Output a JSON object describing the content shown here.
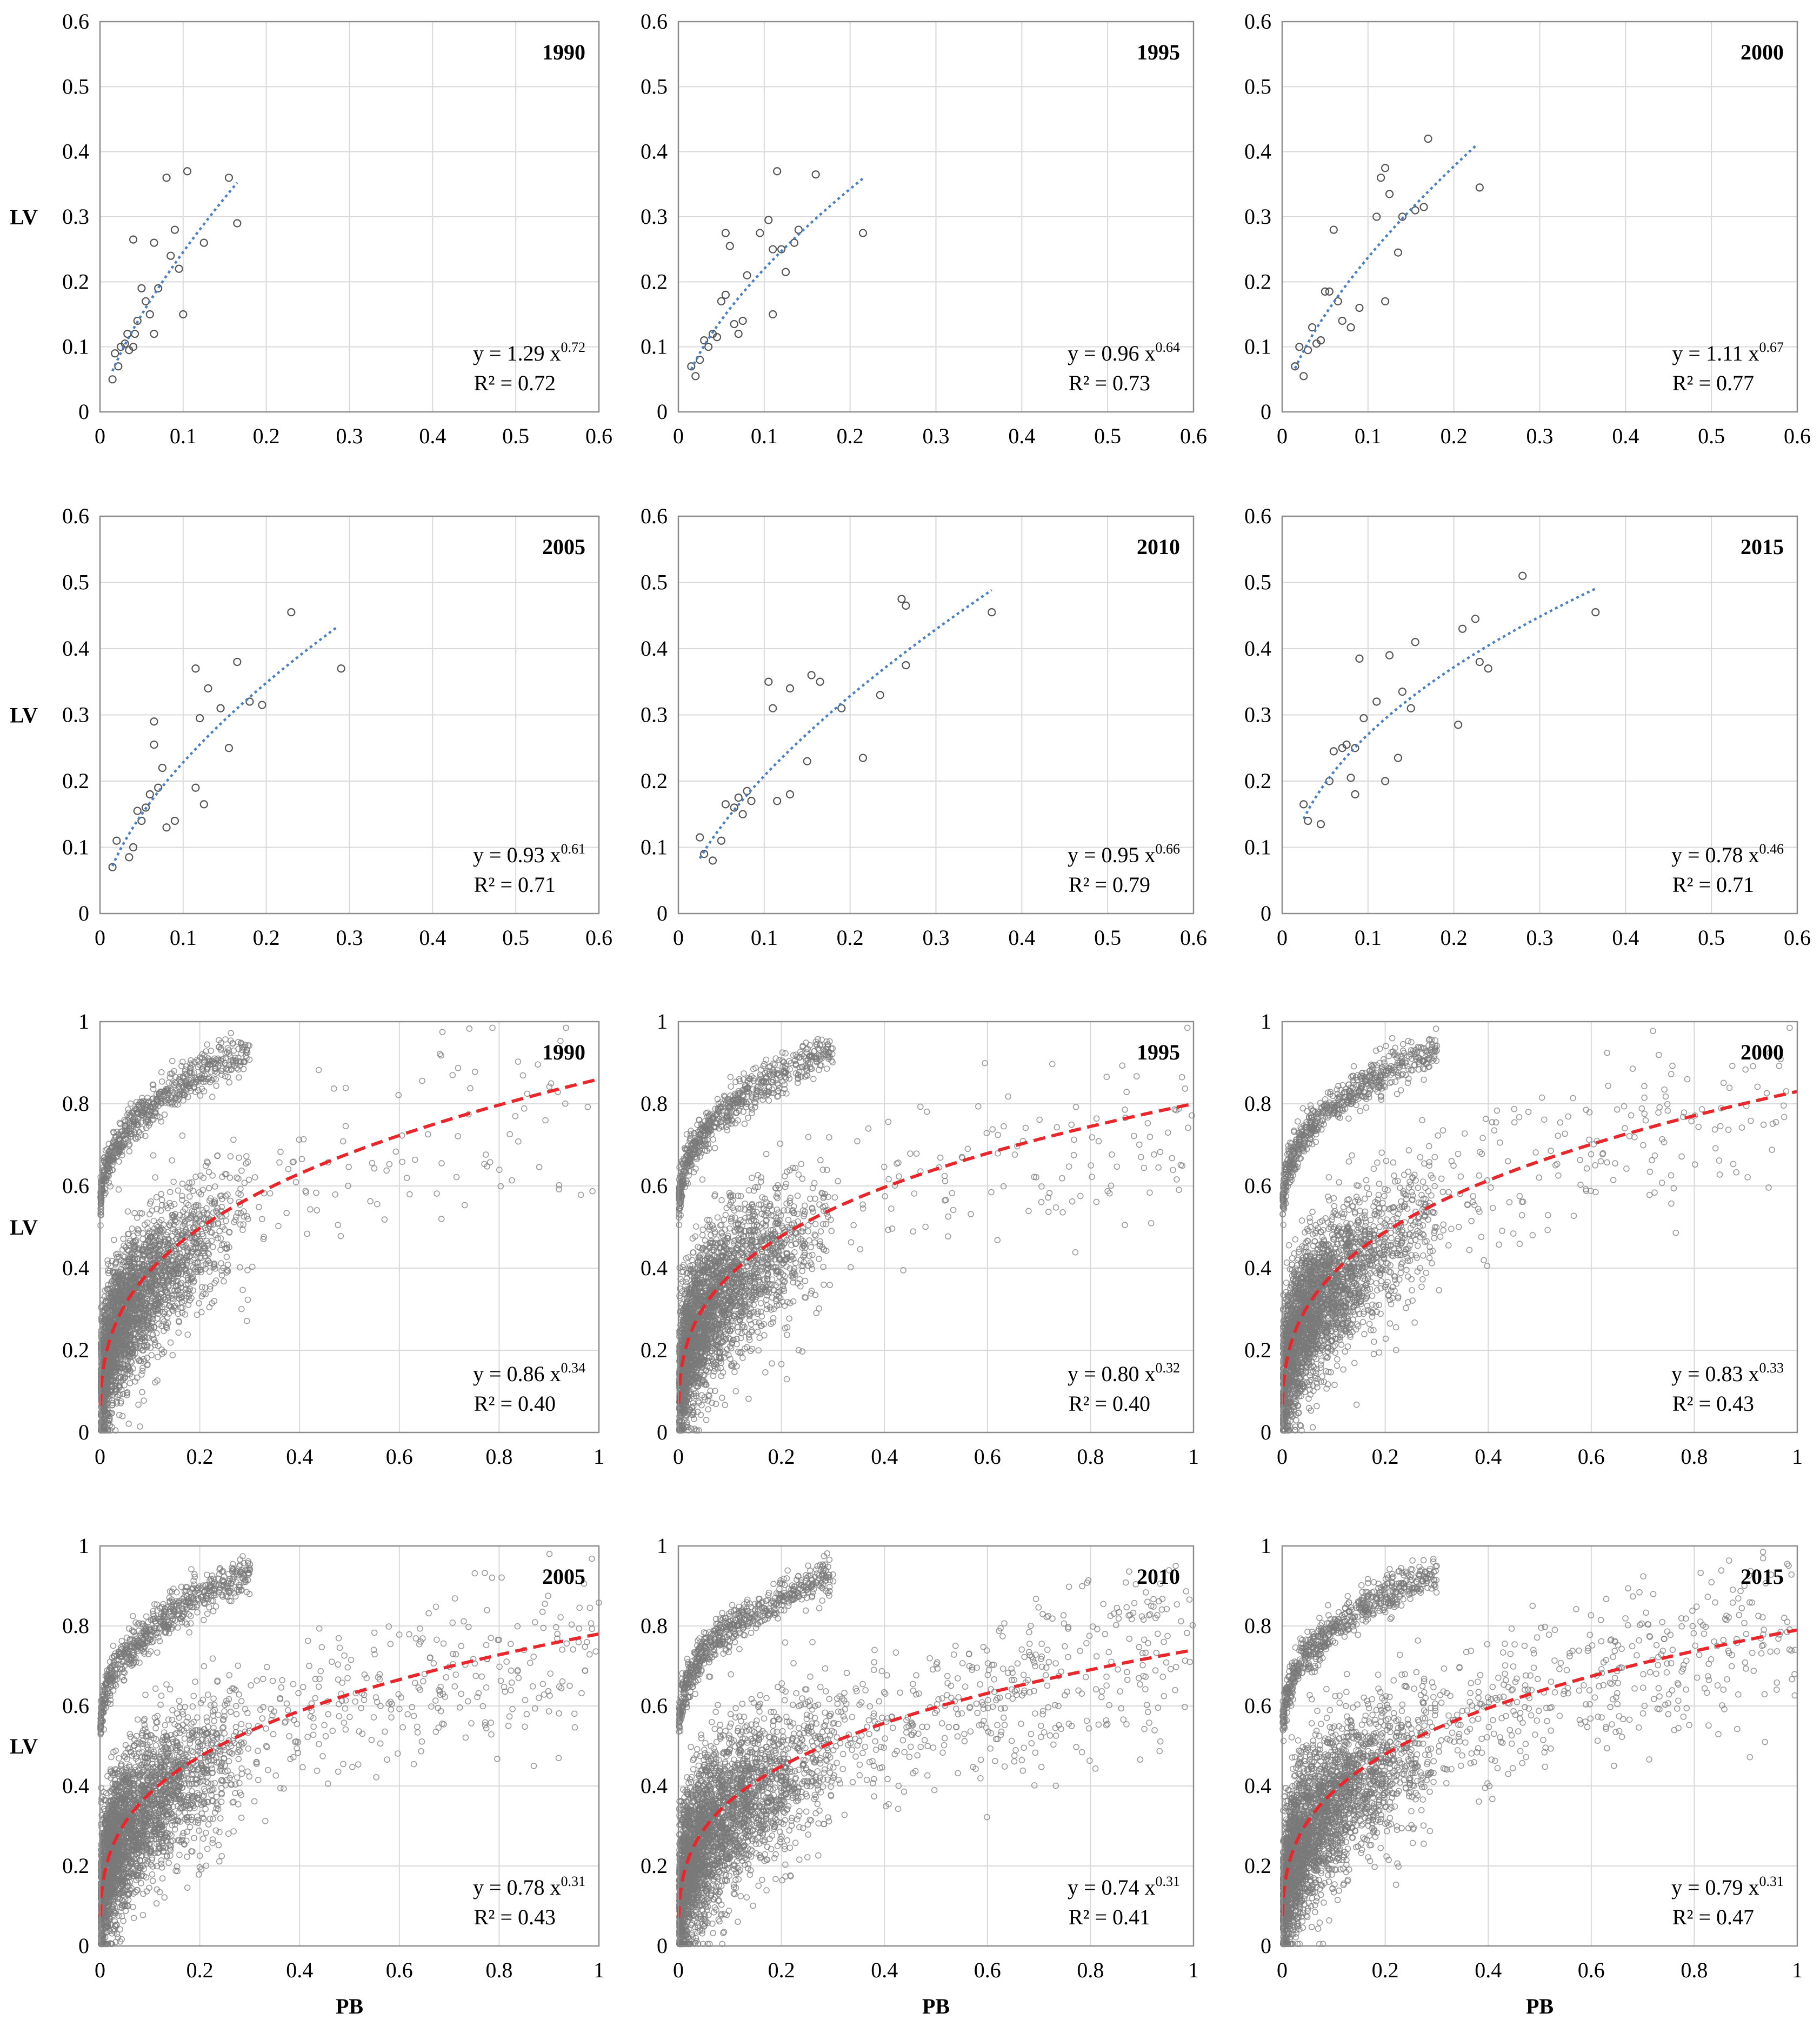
{
  "chart_data": [
    {
      "type": "scatter",
      "title": "1990",
      "ylabel": "LV",
      "xlabel": "",
      "xlim": [
        0,
        0.6
      ],
      "ylim": [
        0,
        0.6
      ],
      "xticks": [
        "0",
        "0.1",
        "0.2",
        "0.3",
        "0.4",
        "0.5",
        "0.6"
      ],
      "yticks": [
        "0",
        "0.1",
        "0.2",
        "0.3",
        "0.4",
        "0.5",
        "0.6"
      ],
      "fit": {
        "a": 1.29,
        "b": 0.72,
        "xmin": 0.015,
        "xmax": 0.165,
        "style": "dotted",
        "color": "#4a7fc1"
      },
      "equation": {
        "prefix": "y = 1.29 x",
        "exponent": "0.72",
        "r2": "R² = 0.72"
      },
      "points": [
        [
          0.015,
          0.05
        ],
        [
          0.018,
          0.09
        ],
        [
          0.022,
          0.07
        ],
        [
          0.025,
          0.1
        ],
        [
          0.03,
          0.105
        ],
        [
          0.033,
          0.12
        ],
        [
          0.035,
          0.095
        ],
        [
          0.04,
          0.265
        ],
        [
          0.04,
          0.1
        ],
        [
          0.042,
          0.12
        ],
        [
          0.045,
          0.14
        ],
        [
          0.05,
          0.19
        ],
        [
          0.055,
          0.17
        ],
        [
          0.06,
          0.15
        ],
        [
          0.065,
          0.26
        ],
        [
          0.065,
          0.12
        ],
        [
          0.07,
          0.19
        ],
        [
          0.08,
          0.36
        ],
        [
          0.085,
          0.24
        ],
        [
          0.09,
          0.28
        ],
        [
          0.095,
          0.22
        ],
        [
          0.1,
          0.15
        ],
        [
          0.105,
          0.37
        ],
        [
          0.125,
          0.26
        ],
        [
          0.155,
          0.36
        ],
        [
          0.165,
          0.29
        ]
      ]
    },
    {
      "type": "scatter",
      "title": "1995",
      "ylabel": "",
      "xlabel": "",
      "xlim": [
        0,
        0.6
      ],
      "ylim": [
        0,
        0.6
      ],
      "xticks": [
        "0",
        "0.1",
        "0.2",
        "0.3",
        "0.4",
        "0.5",
        "0.6"
      ],
      "yticks": [
        "0",
        "0.1",
        "0.2",
        "0.3",
        "0.4",
        "0.5",
        "0.6"
      ],
      "fit": {
        "a": 0.96,
        "b": 0.64,
        "xmin": 0.015,
        "xmax": 0.215,
        "style": "dotted",
        "color": "#4a7fc1"
      },
      "equation": {
        "prefix": "y = 0.96 x",
        "exponent": "0.64",
        "r2": "R² = 0.73"
      },
      "points": [
        [
          0.015,
          0.07
        ],
        [
          0.02,
          0.055
        ],
        [
          0.025,
          0.08
        ],
        [
          0.03,
          0.11
        ],
        [
          0.035,
          0.1
        ],
        [
          0.04,
          0.12
        ],
        [
          0.045,
          0.115
        ],
        [
          0.05,
          0.17
        ],
        [
          0.055,
          0.18
        ],
        [
          0.055,
          0.275
        ],
        [
          0.06,
          0.255
        ],
        [
          0.065,
          0.135
        ],
        [
          0.07,
          0.12
        ],
        [
          0.075,
          0.14
        ],
        [
          0.08,
          0.21
        ],
        [
          0.095,
          0.275
        ],
        [
          0.105,
          0.295
        ],
        [
          0.11,
          0.15
        ],
        [
          0.11,
          0.25
        ],
        [
          0.115,
          0.37
        ],
        [
          0.12,
          0.25
        ],
        [
          0.125,
          0.215
        ],
        [
          0.135,
          0.26
        ],
        [
          0.14,
          0.28
        ],
        [
          0.16,
          0.365
        ],
        [
          0.215,
          0.275
        ]
      ]
    },
    {
      "type": "scatter",
      "title": "2000",
      "ylabel": "",
      "xlabel": "",
      "xlim": [
        0,
        0.6
      ],
      "ylim": [
        0,
        0.6
      ],
      "xticks": [
        "0",
        "0.1",
        "0.2",
        "0.3",
        "0.4",
        "0.5",
        "0.6"
      ],
      "yticks": [
        "0",
        "0.1",
        "0.2",
        "0.3",
        "0.4",
        "0.5",
        "0.6"
      ],
      "fit": {
        "a": 1.11,
        "b": 0.67,
        "xmin": 0.015,
        "xmax": 0.225,
        "style": "dotted",
        "color": "#4a7fc1"
      },
      "equation": {
        "prefix": "y = 1.11 x",
        "exponent": "0.67",
        "r2": "R² = 0.77"
      },
      "points": [
        [
          0.015,
          0.07
        ],
        [
          0.02,
          0.1
        ],
        [
          0.025,
          0.055
        ],
        [
          0.03,
          0.095
        ],
        [
          0.035,
          0.13
        ],
        [
          0.04,
          0.105
        ],
        [
          0.045,
          0.11
        ],
        [
          0.05,
          0.185
        ],
        [
          0.055,
          0.185
        ],
        [
          0.06,
          0.28
        ],
        [
          0.065,
          0.17
        ],
        [
          0.07,
          0.14
        ],
        [
          0.08,
          0.13
        ],
        [
          0.09,
          0.16
        ],
        [
          0.11,
          0.3
        ],
        [
          0.115,
          0.36
        ],
        [
          0.12,
          0.375
        ],
        [
          0.12,
          0.17
        ],
        [
          0.125,
          0.335
        ],
        [
          0.135,
          0.245
        ],
        [
          0.14,
          0.3
        ],
        [
          0.155,
          0.31
        ],
        [
          0.165,
          0.315
        ],
        [
          0.17,
          0.42
        ],
        [
          0.23,
          0.345
        ]
      ]
    },
    {
      "type": "scatter",
      "title": "2005",
      "ylabel": "LV",
      "xlabel": "",
      "xlim": [
        0,
        0.6
      ],
      "ylim": [
        0,
        0.6
      ],
      "xticks": [
        "0",
        "0.1",
        "0.2",
        "0.3",
        "0.4",
        "0.5",
        "0.6"
      ],
      "yticks": [
        "0",
        "0.1",
        "0.2",
        "0.3",
        "0.4",
        "0.5",
        "0.6"
      ],
      "fit": {
        "a": 0.93,
        "b": 0.61,
        "xmin": 0.015,
        "xmax": 0.285,
        "style": "dotted",
        "color": "#4a7fc1"
      },
      "equation": {
        "prefix": "y = 0.93 x",
        "exponent": "0.61",
        "r2": "R² = 0.71"
      },
      "points": [
        [
          0.015,
          0.07
        ],
        [
          0.02,
          0.11
        ],
        [
          0.035,
          0.085
        ],
        [
          0.04,
          0.1
        ],
        [
          0.045,
          0.155
        ],
        [
          0.05,
          0.14
        ],
        [
          0.055,
          0.16
        ],
        [
          0.06,
          0.18
        ],
        [
          0.065,
          0.255
        ],
        [
          0.065,
          0.29
        ],
        [
          0.07,
          0.19
        ],
        [
          0.075,
          0.22
        ],
        [
          0.08,
          0.13
        ],
        [
          0.09,
          0.14
        ],
        [
          0.115,
          0.37
        ],
        [
          0.115,
          0.19
        ],
        [
          0.12,
          0.295
        ],
        [
          0.125,
          0.165
        ],
        [
          0.13,
          0.34
        ],
        [
          0.145,
          0.31
        ],
        [
          0.155,
          0.25
        ],
        [
          0.165,
          0.38
        ],
        [
          0.18,
          0.32
        ],
        [
          0.195,
          0.315
        ],
        [
          0.23,
          0.455
        ],
        [
          0.29,
          0.37
        ]
      ]
    },
    {
      "type": "scatter",
      "title": "2010",
      "ylabel": "",
      "xlabel": "",
      "xlim": [
        0,
        0.6
      ],
      "ylim": [
        0,
        0.6
      ],
      "xticks": [
        "0",
        "0.1",
        "0.2",
        "0.3",
        "0.4",
        "0.5",
        "0.6"
      ],
      "yticks": [
        "0",
        "0.1",
        "0.2",
        "0.3",
        "0.4",
        "0.5",
        "0.6"
      ],
      "fit": {
        "a": 0.95,
        "b": 0.66,
        "xmin": 0.025,
        "xmax": 0.365,
        "style": "dotted",
        "color": "#4a7fc1"
      },
      "equation": {
        "prefix": "y = 0.95 x",
        "exponent": "0.66",
        "r2": "R² = 0.79"
      },
      "points": [
        [
          0.025,
          0.115
        ],
        [
          0.03,
          0.09
        ],
        [
          0.04,
          0.08
        ],
        [
          0.05,
          0.11
        ],
        [
          0.055,
          0.165
        ],
        [
          0.065,
          0.16
        ],
        [
          0.07,
          0.175
        ],
        [
          0.075,
          0.15
        ],
        [
          0.08,
          0.185
        ],
        [
          0.085,
          0.17
        ],
        [
          0.105,
          0.35
        ],
        [
          0.11,
          0.31
        ],
        [
          0.115,
          0.17
        ],
        [
          0.13,
          0.18
        ],
        [
          0.13,
          0.34
        ],
        [
          0.15,
          0.23
        ],
        [
          0.155,
          0.36
        ],
        [
          0.165,
          0.35
        ],
        [
          0.19,
          0.31
        ],
        [
          0.215,
          0.235
        ],
        [
          0.235,
          0.33
        ],
        [
          0.26,
          0.475
        ],
        [
          0.265,
          0.465
        ],
        [
          0.265,
          0.375
        ],
        [
          0.365,
          0.455
        ]
      ]
    },
    {
      "type": "scatter",
      "title": "2015",
      "ylabel": "",
      "xlabel": "",
      "xlim": [
        0,
        0.6
      ],
      "ylim": [
        0,
        0.6
      ],
      "xticks": [
        "0",
        "0.1",
        "0.2",
        "0.3",
        "0.4",
        "0.5",
        "0.6"
      ],
      "yticks": [
        "0",
        "0.1",
        "0.2",
        "0.3",
        "0.4",
        "0.5",
        "0.6"
      ],
      "fit": {
        "a": 0.78,
        "b": 0.46,
        "xmin": 0.025,
        "xmax": 0.365,
        "style": "dotted",
        "color": "#4a7fc1"
      },
      "equation": {
        "prefix": "y = 0.78 x",
        "exponent": "0.46",
        "r2": "R² = 0.71"
      },
      "points": [
        [
          0.025,
          0.165
        ],
        [
          0.03,
          0.14
        ],
        [
          0.045,
          0.135
        ],
        [
          0.055,
          0.2
        ],
        [
          0.06,
          0.245
        ],
        [
          0.07,
          0.25
        ],
        [
          0.075,
          0.255
        ],
        [
          0.08,
          0.205
        ],
        [
          0.085,
          0.25
        ],
        [
          0.085,
          0.18
        ],
        [
          0.09,
          0.385
        ],
        [
          0.095,
          0.295
        ],
        [
          0.11,
          0.32
        ],
        [
          0.12,
          0.2
        ],
        [
          0.125,
          0.39
        ],
        [
          0.135,
          0.235
        ],
        [
          0.14,
          0.335
        ],
        [
          0.15,
          0.31
        ],
        [
          0.155,
          0.41
        ],
        [
          0.205,
          0.285
        ],
        [
          0.21,
          0.43
        ],
        [
          0.225,
          0.445
        ],
        [
          0.23,
          0.38
        ],
        [
          0.24,
          0.37
        ],
        [
          0.28,
          0.51
        ],
        [
          0.365,
          0.455
        ]
      ]
    },
    {
      "type": "scatter",
      "title": "1990",
      "ylabel": "LV",
      "xlabel": "",
      "xlim": [
        0,
        1
      ],
      "ylim": [
        0,
        1
      ],
      "xticks": [
        "0",
        "0.2",
        "0.4",
        "0.6",
        "0.8",
        "1"
      ],
      "yticks": [
        "0",
        "0.2",
        "0.4",
        "0.6",
        "0.8",
        "1"
      ],
      "fit": {
        "a": 0.86,
        "b": 0.34,
        "xmin": 0.0005,
        "xmax": 1,
        "style": "dashed",
        "color": "#e8262b"
      },
      "equation": {
        "prefix": "y = 0.86 x",
        "exponent": "0.34",
        "r2": "R² = 0.40"
      },
      "cloud": {
        "seed": 11,
        "n_main": 2600,
        "n_arc": 650,
        "n_sparse": 140,
        "spread": 0.085
      }
    },
    {
      "type": "scatter",
      "title": "1995",
      "ylabel": "",
      "xlabel": "",
      "xlim": [
        0,
        1
      ],
      "ylim": [
        0,
        1
      ],
      "xticks": [
        "0",
        "0.2",
        "0.4",
        "0.6",
        "0.8",
        "1"
      ],
      "yticks": [
        "0",
        "0.2",
        "0.4",
        "0.6",
        "0.8",
        "1"
      ],
      "fit": {
        "a": 0.8,
        "b": 0.32,
        "xmin": 0.0005,
        "xmax": 1,
        "style": "dashed",
        "color": "#e8262b"
      },
      "equation": {
        "prefix": "y = 0.80 x",
        "exponent": "0.32",
        "r2": "R² = 0.40"
      },
      "cloud": {
        "seed": 23,
        "n_main": 2600,
        "n_arc": 650,
        "n_sparse": 200,
        "spread": 0.09
      }
    },
    {
      "type": "scatter",
      "title": "2000",
      "ylabel": "",
      "xlabel": "",
      "xlim": [
        0,
        1
      ],
      "ylim": [
        0,
        1
      ],
      "xticks": [
        "0",
        "0.2",
        "0.4",
        "0.6",
        "0.8",
        "1"
      ],
      "yticks": [
        "0",
        "0.2",
        "0.4",
        "0.6",
        "0.8",
        "1"
      ],
      "fit": {
        "a": 0.83,
        "b": 0.33,
        "xmin": 0.0005,
        "xmax": 1,
        "style": "dashed",
        "color": "#e8262b"
      },
      "equation": {
        "prefix": "y = 0.83 x",
        "exponent": "0.33",
        "r2": "R² = 0.43"
      },
      "cloud": {
        "seed": 37,
        "n_main": 2600,
        "n_arc": 650,
        "n_sparse": 260,
        "spread": 0.09
      }
    },
    {
      "type": "scatter",
      "title": "2005",
      "ylabel": "LV",
      "xlabel": "PB",
      "xlim": [
        0,
        1
      ],
      "ylim": [
        0,
        1
      ],
      "xticks": [
        "0",
        "0.2",
        "0.4",
        "0.6",
        "0.8",
        "1"
      ],
      "yticks": [
        "0",
        "0.2",
        "0.4",
        "0.6",
        "0.8",
        "1"
      ],
      "fit": {
        "a": 0.78,
        "b": 0.31,
        "xmin": 0.0005,
        "xmax": 1,
        "style": "dashed",
        "color": "#e8262b"
      },
      "equation": {
        "prefix": "y = 0.78 x",
        "exponent": "0.31",
        "r2": "R² = 0.43"
      },
      "cloud": {
        "seed": 41,
        "n_main": 2700,
        "n_arc": 650,
        "n_sparse": 420,
        "spread": 0.095
      }
    },
    {
      "type": "scatter",
      "title": "2010",
      "ylabel": "",
      "xlabel": "PB",
      "xlim": [
        0,
        1
      ],
      "ylim": [
        0,
        1
      ],
      "xticks": [
        "0",
        "0.2",
        "0.4",
        "0.6",
        "0.8",
        "1"
      ],
      "yticks": [
        "0",
        "0.2",
        "0.4",
        "0.6",
        "0.8",
        "1"
      ],
      "fit": {
        "a": 0.74,
        "b": 0.31,
        "xmin": 0.0005,
        "xmax": 1,
        "style": "dashed",
        "color": "#e8262b"
      },
      "equation": {
        "prefix": "y = 0.74 x",
        "exponent": "0.31",
        "r2": "R² = 0.41"
      },
      "cloud": {
        "seed": 53,
        "n_main": 2800,
        "n_arc": 650,
        "n_sparse": 620,
        "spread": 0.1
      }
    },
    {
      "type": "scatter",
      "title": "2015",
      "ylabel": "",
      "xlabel": "PB",
      "xlim": [
        0,
        1
      ],
      "ylim": [
        0,
        1
      ],
      "xticks": [
        "0",
        "0.2",
        "0.4",
        "0.6",
        "0.8",
        "1"
      ],
      "yticks": [
        "0",
        "0.2",
        "0.4",
        "0.6",
        "0.8",
        "1"
      ],
      "fit": {
        "a": 0.79,
        "b": 0.31,
        "xmin": 0.0005,
        "xmax": 1,
        "style": "dashed",
        "color": "#e8262b"
      },
      "equation": {
        "prefix": "y = 0.79 x",
        "exponent": "0.31",
        "r2": "R² = 0.47"
      },
      "cloud": {
        "seed": 67,
        "n_main": 2700,
        "n_arc": 650,
        "n_sparse": 560,
        "spread": 0.095
      }
    }
  ]
}
